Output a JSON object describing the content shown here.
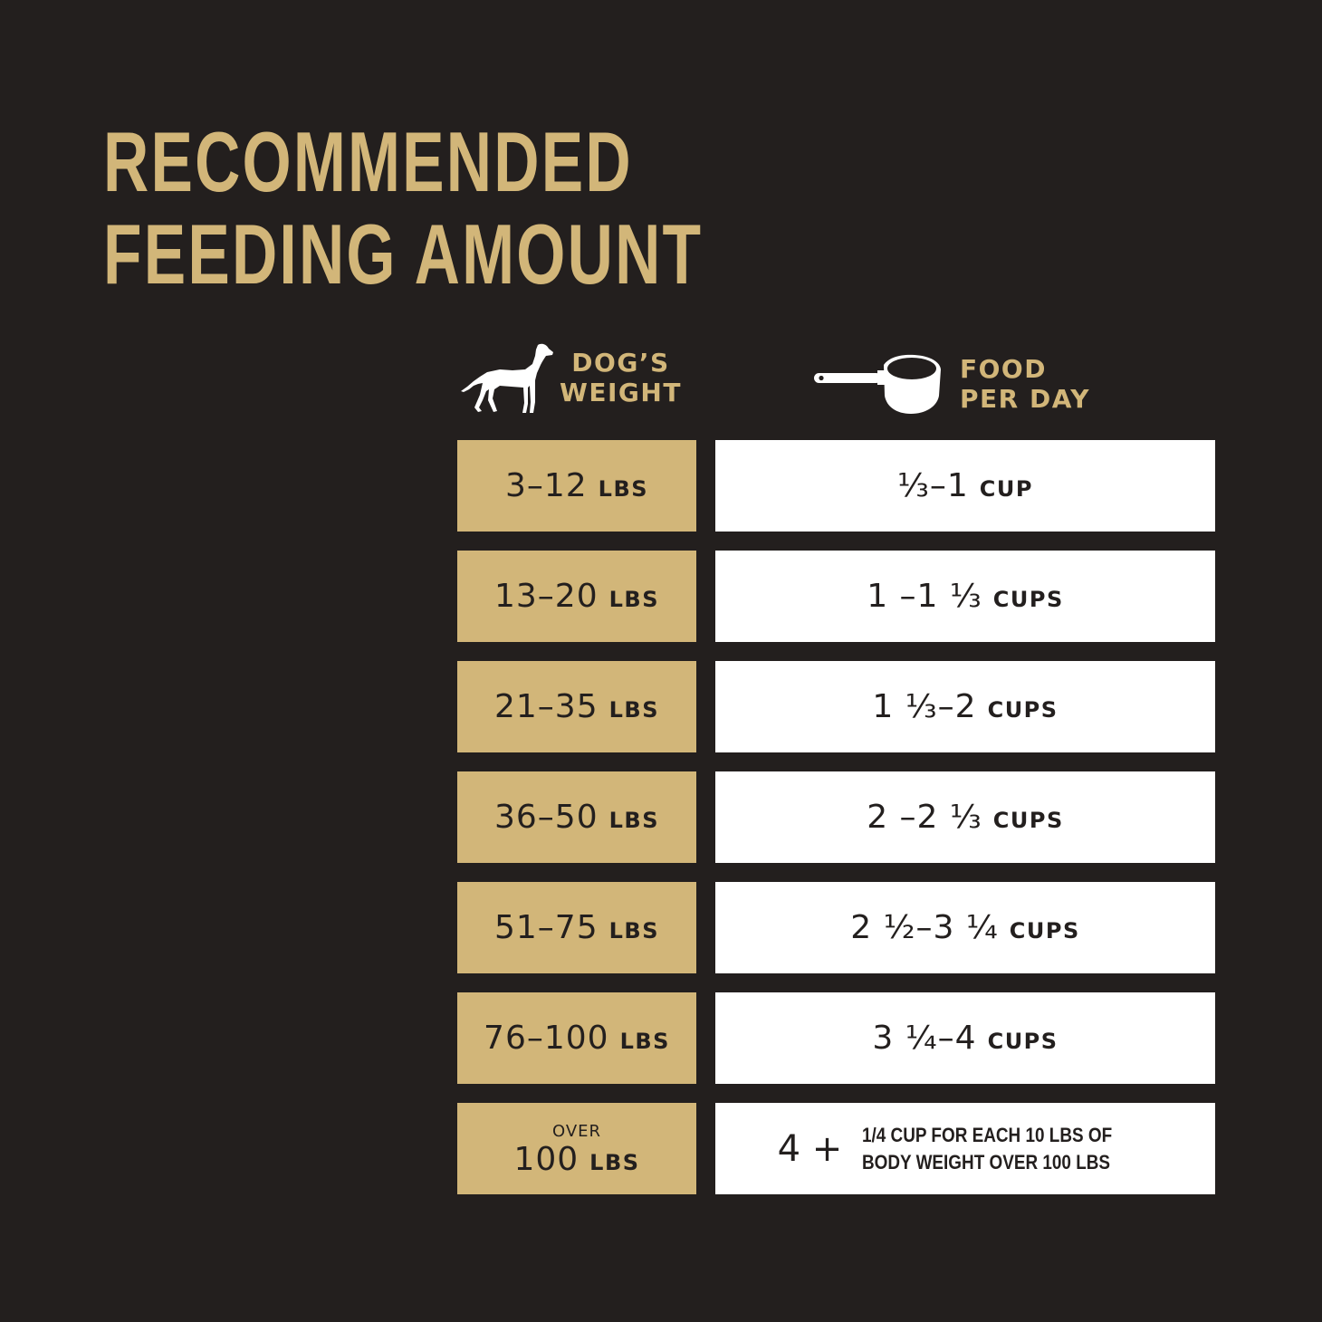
{
  "title": {
    "line1": "RECOMMENDED",
    "line2": "FEEDING AMOUNT"
  },
  "colors": {
    "background": "#231f1e",
    "gold": "#d2b679",
    "white": "#ffffff"
  },
  "headers": {
    "weight": {
      "icon": "dog-icon",
      "line1": "DOG’S",
      "line2": "WEIGHT"
    },
    "food": {
      "icon": "measuring-cup-icon",
      "line1": "FOOD",
      "line2": "PER DAY"
    }
  },
  "rows": [
    {
      "weight": "3–12",
      "weight_unit": "LBS",
      "food": "⅓–1",
      "food_unit": "CUP"
    },
    {
      "weight": "13–20",
      "weight_unit": "LBS",
      "food": "1 –1 ⅓",
      "food_unit": "CUPS"
    },
    {
      "weight": "21–35",
      "weight_unit": "LBS",
      "food": "1 ⅓–2",
      "food_unit": "CUPS"
    },
    {
      "weight": "36–50",
      "weight_unit": "LBS",
      "food": "2 –2 ⅓",
      "food_unit": "CUPS"
    },
    {
      "weight": "51–75",
      "weight_unit": "LBS",
      "food": "2 ½–3 ¼",
      "food_unit": "CUPS"
    },
    {
      "weight": "76–100",
      "weight_unit": "LBS",
      "food": "3 ¼–4",
      "food_unit": "CUPS"
    }
  ],
  "last_row": {
    "prefix": "OVER",
    "weight": "100",
    "weight_unit": "LBS",
    "food": "4 +",
    "note_line1": "1/4 CUP FOR EACH 10 LBS OF",
    "note_line2": "BODY WEIGHT OVER 100 LBS"
  }
}
